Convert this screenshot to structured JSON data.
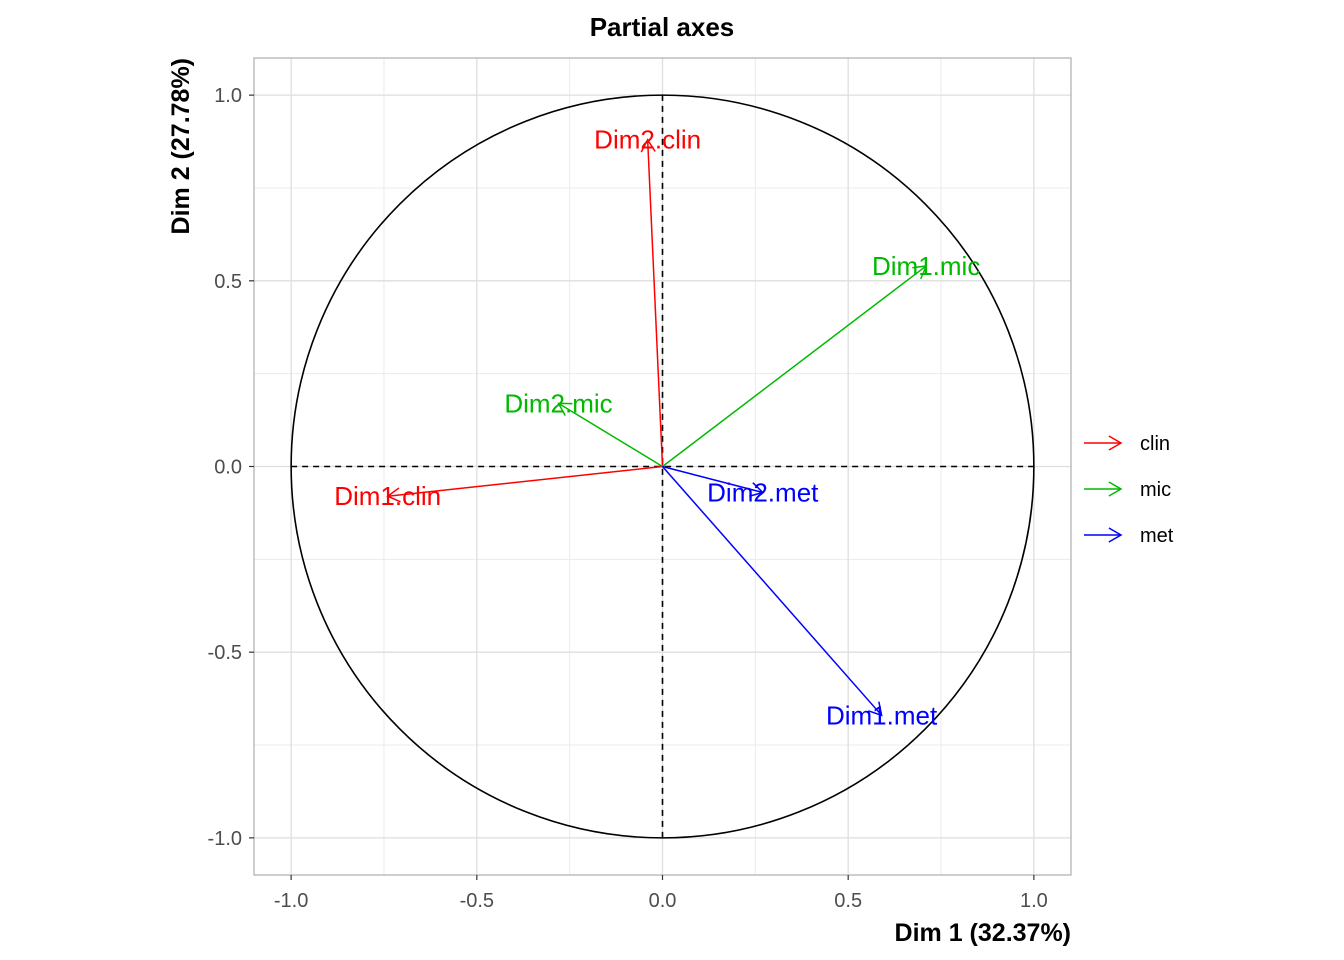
{
  "chart_data": {
    "type": "vector",
    "title": "Partial axes",
    "xlabel": "Dim 1 (32.37%)",
    "ylabel": "Dim 2 (27.78%)",
    "xlim": [
      -1.1,
      1.1
    ],
    "ylim": [
      -1.1,
      1.1
    ],
    "x_ticks": [
      -1.0,
      -0.5,
      0.0,
      0.5,
      1.0
    ],
    "x_tick_labels": [
      "-1.0",
      "-0.5",
      "0.0",
      "0.5",
      "1.0"
    ],
    "y_ticks": [
      -1.0,
      -0.5,
      0.0,
      0.5,
      1.0
    ],
    "y_tick_labels": [
      "-1.0",
      "-0.5",
      "0.0",
      "0.5",
      "1.0"
    ],
    "grid": true,
    "unit_circle": true,
    "legend_position": "right",
    "groups": [
      {
        "name": "clin",
        "color": "#ff0000"
      },
      {
        "name": "mic",
        "color": "#00ba00"
      },
      {
        "name": "met",
        "color": "#0000ff"
      }
    ],
    "vectors": [
      {
        "label": "Dim1.clin",
        "group": "clin",
        "x": -0.74,
        "y": -0.08
      },
      {
        "label": "Dim2.clin",
        "group": "clin",
        "x": -0.04,
        "y": 0.88
      },
      {
        "label": "Dim1.mic",
        "group": "mic",
        "x": 0.71,
        "y": 0.54
      },
      {
        "label": "Dim2.mic",
        "group": "mic",
        "x": -0.28,
        "y": 0.17
      },
      {
        "label": "Dim1.met",
        "group": "met",
        "x": 0.59,
        "y": -0.67
      },
      {
        "label": "Dim2.met",
        "group": "met",
        "x": 0.27,
        "y": -0.07
      }
    ]
  }
}
